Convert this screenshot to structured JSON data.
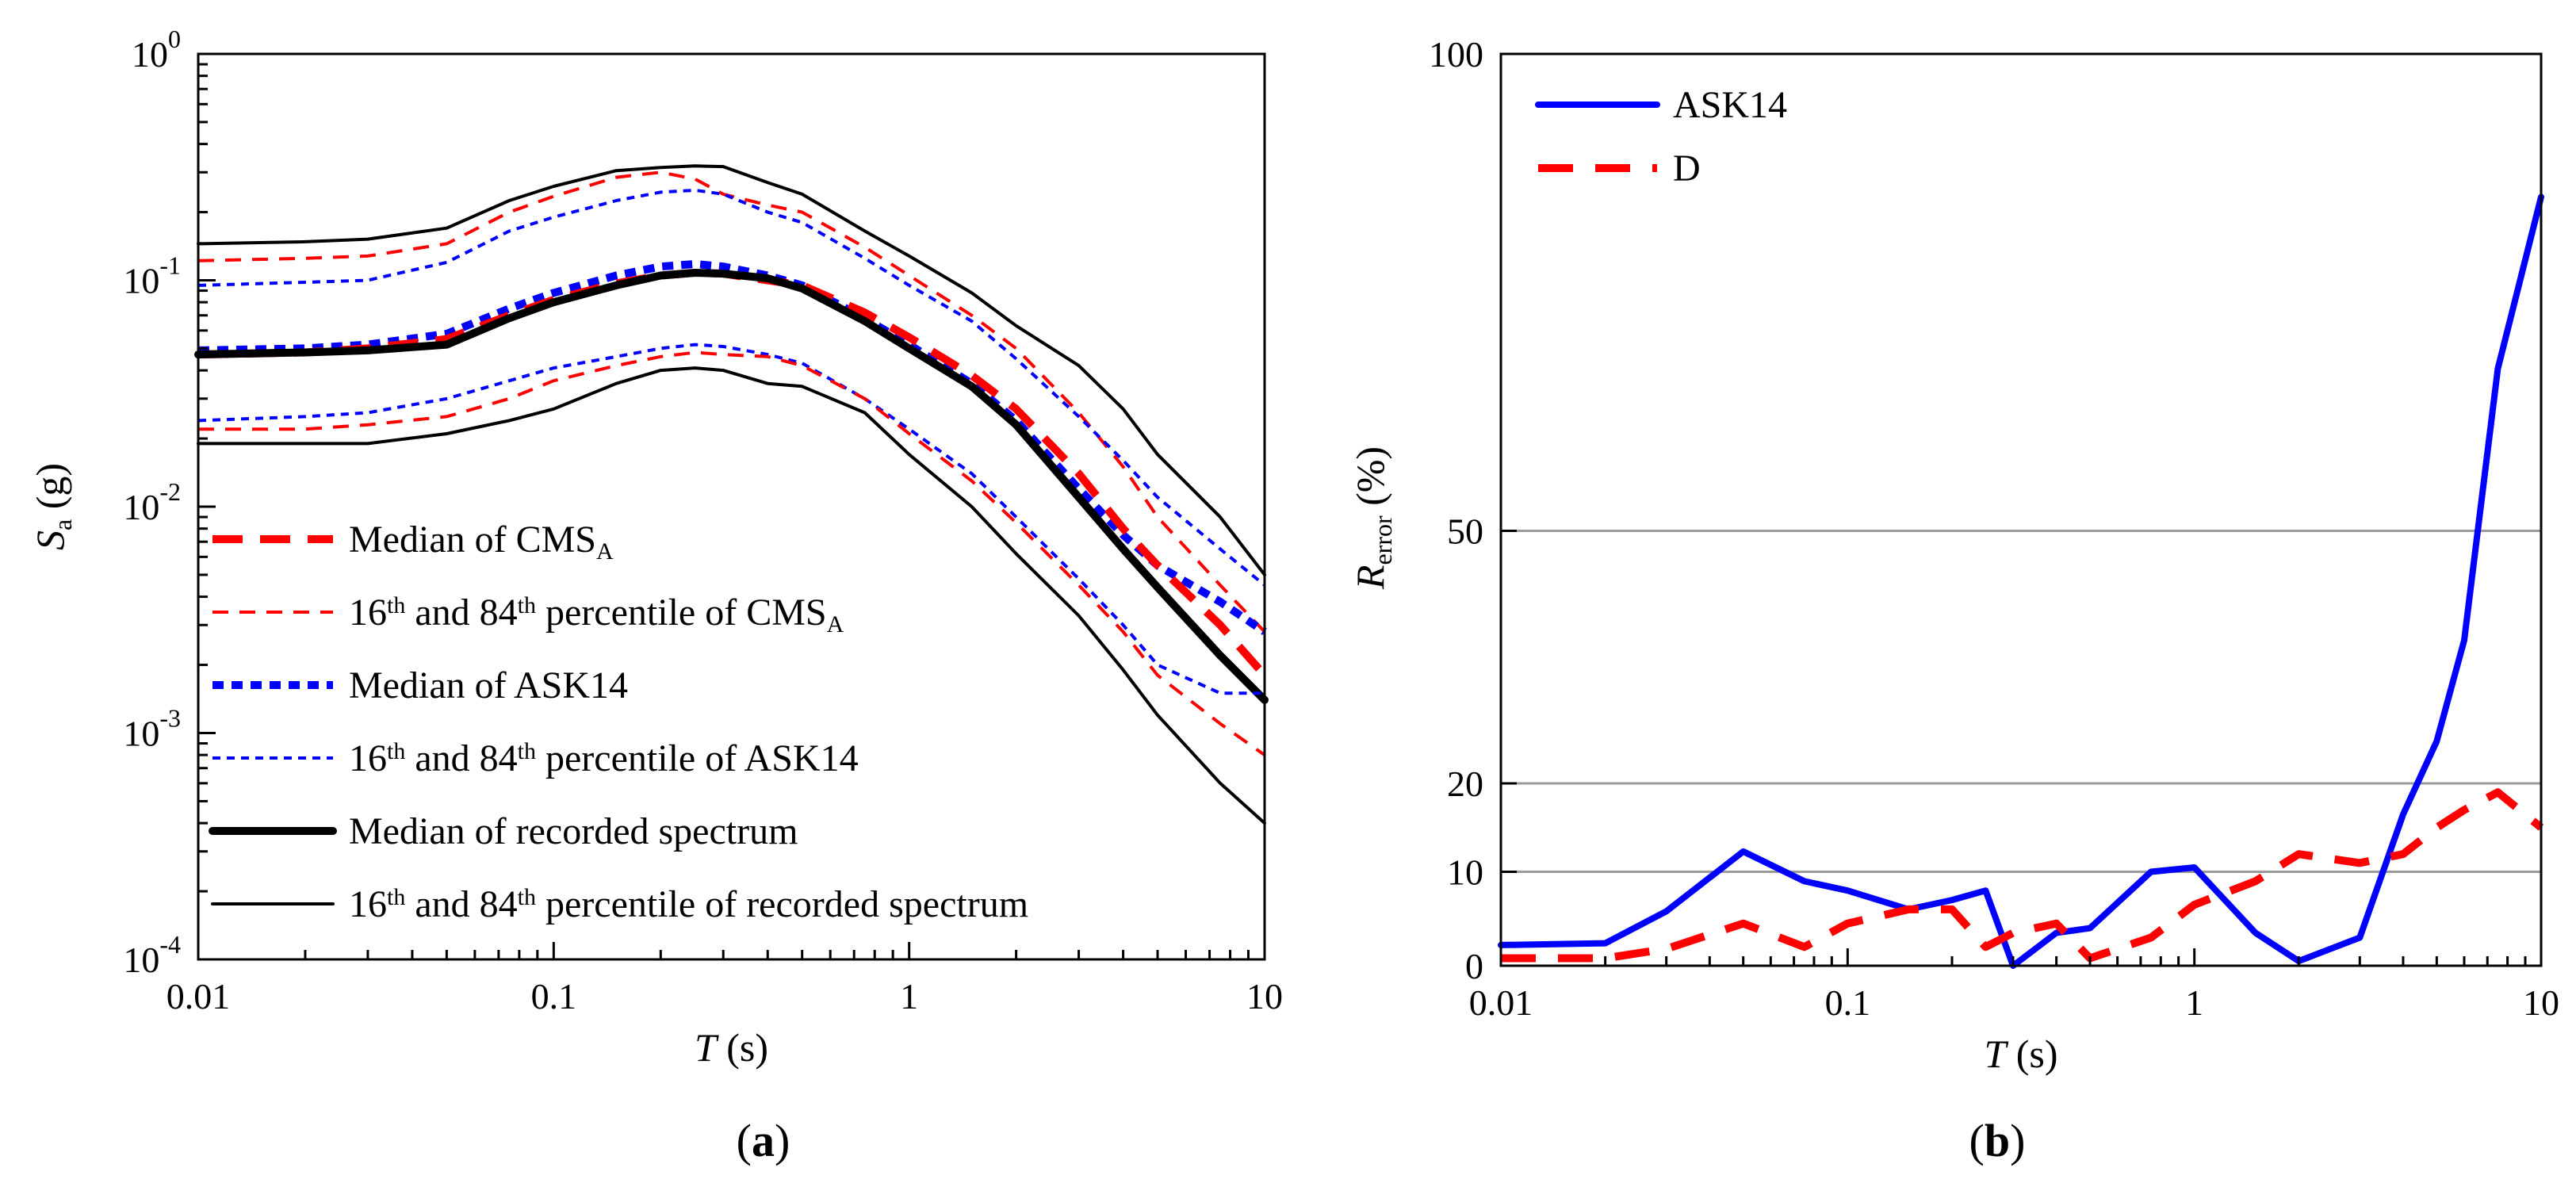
{
  "colors": {
    "red": "#ff0000",
    "blue": "#0000ff",
    "black": "#000000",
    "grid": "#9a9a9a"
  },
  "chart_data": [
    {
      "type": "line",
      "panel_label": "(a)",
      "panel_letter": "a",
      "xscale": "log",
      "yscale": "log",
      "xlim": [
        0.01,
        10
      ],
      "ylim": [
        0.0001,
        1
      ],
      "xlabel": {
        "var": "T",
        "unit": "(s)"
      },
      "ylabel": {
        "var": "S",
        "sub": "a",
        "unit": "(g)"
      },
      "x_ticks": [
        "0.01",
        "0.1",
        "1",
        "10"
      ],
      "y_ticks": [
        {
          "base": "10",
          "exp": "-4"
        },
        {
          "base": "10",
          "exp": "-3"
        },
        {
          "base": "10",
          "exp": "-2"
        },
        {
          "base": "10",
          "exp": "-1"
        },
        {
          "base": "10",
          "exp": "0"
        }
      ],
      "grid": false,
      "legend_position": "bottom-left",
      "legend": [
        {
          "parts": [
            {
              "t": "Median of CMS"
            },
            {
              "t": "A",
              "s": "sub"
            }
          ],
          "color": "#ff0000",
          "style": "thick-dash"
        },
        {
          "parts": [
            {
              "t": "16"
            },
            {
              "t": "th",
              "s": "sup"
            },
            {
              "t": " and 84"
            },
            {
              "t": "th",
              "s": "sup"
            },
            {
              "t": " percentile of CMS"
            },
            {
              "t": "A",
              "s": "sub"
            }
          ],
          "color": "#ff0000",
          "style": "thin-dash"
        },
        {
          "parts": [
            {
              "t": "Median of  ASK14"
            }
          ],
          "color": "#0000ff",
          "style": "thick-dot"
        },
        {
          "parts": [
            {
              "t": "16"
            },
            {
              "t": "th",
              "s": "sup"
            },
            {
              "t": " and 84"
            },
            {
              "t": "th",
              "s": "sup"
            },
            {
              "t": " percentile of ASK14"
            }
          ],
          "color": "#0000ff",
          "style": "thin-dot"
        },
        {
          "parts": [
            {
              "t": "Median of recorded spectrum"
            }
          ],
          "color": "#000000",
          "style": "thick-solid"
        },
        {
          "parts": [
            {
              "t": "16"
            },
            {
              "t": "th",
              "s": "sup"
            },
            {
              "t": " and 84"
            },
            {
              "t": "th",
              "s": "sup"
            },
            {
              "t": " percentile of recorded spectrum"
            }
          ],
          "color": "#000000",
          "style": "thin-solid"
        }
      ],
      "x": [
        0.01,
        0.02,
        0.03,
        0.05,
        0.075,
        0.1,
        0.15,
        0.2,
        0.25,
        0.3,
        0.4,
        0.5,
        0.75,
        1,
        1.5,
        2,
        3,
        4,
        5,
        7.5,
        10
      ],
      "series": [
        {
          "legend_ref": 4,
          "style": "thin-solid",
          "color": "#000000",
          "values": [
            0.145,
            0.148,
            0.152,
            0.17,
            0.225,
            0.26,
            0.305,
            0.315,
            0.32,
            0.318,
            0.27,
            0.24,
            0.165,
            0.128,
            0.088,
            0.063,
            0.042,
            0.027,
            0.017,
            0.009,
            0.005
          ]
        },
        {
          "legend_ref": 1,
          "style": "thin-dash",
          "color": "#ff0000",
          "values": [
            0.122,
            0.125,
            0.128,
            0.145,
            0.2,
            0.235,
            0.285,
            0.3,
            0.28,
            0.24,
            0.215,
            0.2,
            0.14,
            0.105,
            0.07,
            0.05,
            0.026,
            0.015,
            0.009,
            0.0045,
            0.0028
          ]
        },
        {
          "legend_ref": 3,
          "style": "thin-dot",
          "color": "#0000ff",
          "values": [
            0.095,
            0.098,
            0.1,
            0.12,
            0.165,
            0.19,
            0.225,
            0.245,
            0.25,
            0.24,
            0.2,
            0.18,
            0.125,
            0.095,
            0.066,
            0.045,
            0.025,
            0.016,
            0.011,
            0.0065,
            0.0045
          ]
        },
        {
          "legend_ref": 2,
          "style": "thick-dot",
          "color": "#0000ff",
          "values": [
            0.049,
            0.05,
            0.052,
            0.058,
            0.075,
            0.088,
            0.105,
            0.115,
            0.118,
            0.115,
            0.105,
            0.095,
            0.068,
            0.052,
            0.035,
            0.024,
            0.012,
            0.0075,
            0.0055,
            0.0038,
            0.0028
          ]
        },
        {
          "legend_ref": 0,
          "style": "thick-dash",
          "color": "#ff0000",
          "values": [
            0.047,
            0.048,
            0.05,
            0.055,
            0.07,
            0.082,
            0.097,
            0.105,
            0.108,
            0.107,
            0.1,
            0.095,
            0.072,
            0.056,
            0.038,
            0.027,
            0.014,
            0.008,
            0.0055,
            0.003,
            0.0018
          ]
        },
        {
          "legend_ref": 4,
          "style": "thick-solid",
          "color": "#000000",
          "values": [
            0.047,
            0.048,
            0.049,
            0.052,
            0.068,
            0.08,
            0.095,
            0.105,
            0.108,
            0.107,
            0.102,
            0.092,
            0.066,
            0.05,
            0.034,
            0.023,
            0.011,
            0.0065,
            0.0044,
            0.0022,
            0.0014
          ]
        },
        {
          "legend_ref": 3,
          "style": "thin-dot",
          "color": "#0000ff",
          "values": [
            0.024,
            0.025,
            0.026,
            0.03,
            0.036,
            0.041,
            0.046,
            0.05,
            0.052,
            0.051,
            0.047,
            0.043,
            0.03,
            0.022,
            0.014,
            0.009,
            0.0048,
            0.003,
            0.002,
            0.0015,
            0.0015
          ]
        },
        {
          "legend_ref": 1,
          "style": "thin-dash",
          "color": "#ff0000",
          "values": [
            0.022,
            0.022,
            0.023,
            0.025,
            0.03,
            0.036,
            0.042,
            0.046,
            0.048,
            0.047,
            0.046,
            0.042,
            0.03,
            0.021,
            0.013,
            0.0085,
            0.0045,
            0.0028,
            0.0018,
            0.0011,
            0.0008
          ]
        },
        {
          "legend_ref": 5,
          "style": "thin-solid",
          "color": "#000000",
          "values": [
            0.019,
            0.019,
            0.019,
            0.021,
            0.024,
            0.027,
            0.035,
            0.04,
            0.041,
            0.04,
            0.035,
            0.034,
            0.026,
            0.017,
            0.01,
            0.0062,
            0.0033,
            0.0019,
            0.0012,
            0.0006,
            0.0004
          ]
        }
      ]
    },
    {
      "type": "line",
      "panel_label": "(b)",
      "panel_letter": "b",
      "xscale": "log",
      "yscale": "nonlinear (ticks 0, 10, 20, 50, 100)",
      "xlim": [
        0.01,
        10
      ],
      "ylim": [
        0,
        100
      ],
      "xlabel": {
        "var": "T",
        "unit": "(s)"
      },
      "ylabel": {
        "var": "R",
        "sub": "error",
        "unit": "(%)"
      },
      "x_ticks": [
        "0.01",
        "0.1",
        "1",
        "10"
      ],
      "y_ticks": [
        "0",
        "10",
        "20",
        "50",
        "100"
      ],
      "grid": "horizontal",
      "legend_position": "top-left",
      "legend": [
        {
          "label": "ASK14",
          "color": "#0000ff",
          "style": "solid"
        },
        {
          "label": "D",
          "color": "#ff0000",
          "style": "dash"
        }
      ],
      "x": [
        0.01,
        0.02,
        0.03,
        0.05,
        0.075,
        0.1,
        0.15,
        0.2,
        0.25,
        0.3,
        0.4,
        0.5,
        0.75,
        1,
        1.5,
        2,
        3,
        4,
        5,
        6,
        7.5,
        10
      ],
      "series": [
        {
          "legend_ref": 0,
          "style": "solid",
          "color": "#0000ff",
          "values": [
            2.2,
            2.4,
            5.8,
            12.3,
            9.0,
            8.0,
            6.0,
            7.0,
            8.0,
            0.0,
            3.5,
            4.0,
            10.0,
            10.5,
            3.5,
            0.5,
            3.0,
            16.5,
            25.0,
            37.0,
            67.0,
            85.0
          ]
        },
        {
          "legend_ref": 1,
          "style": "dash",
          "color": "#ff0000",
          "values": [
            0.8,
            0.8,
            1.8,
            4.5,
            2.0,
            4.5,
            6.0,
            6.0,
            2.0,
            3.5,
            4.5,
            0.8,
            3.0,
            6.5,
            9.0,
            12.0,
            11.0,
            12.0,
            15.0,
            17.0,
            19.0,
            15.0
          ]
        }
      ]
    }
  ]
}
